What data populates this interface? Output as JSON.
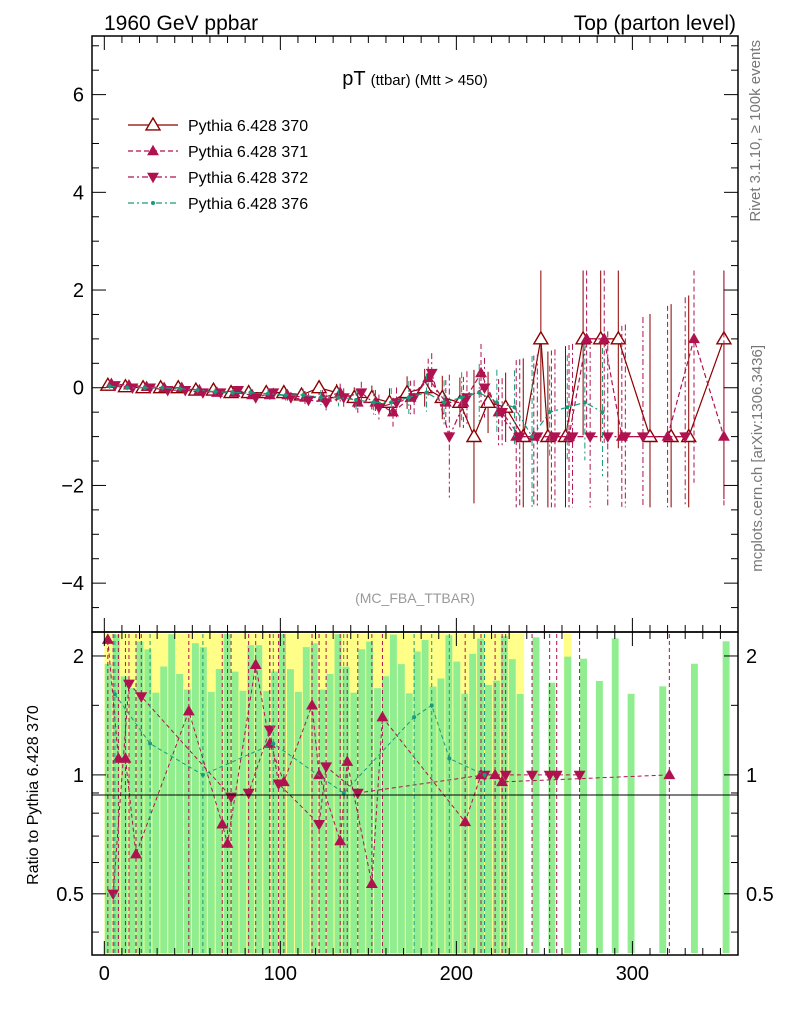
{
  "header": {
    "left": "1960 GeV ppbar",
    "right": "Top (parton level)"
  },
  "side": {
    "rivet": "Rivet 3.1.10, ≥ 100k events",
    "mcplots": "mcplots.cern.ch [arXiv:1306.3436]"
  },
  "chart_data": [
    {
      "type": "line",
      "title": "pT (ttbar) (Mtt > 450)",
      "title_main": "pT",
      "title_sub": "(ttbar) (Mtt > 450)",
      "analysis_label": "(MC_FBA_TTBAR)",
      "xlim": [
        -7,
        360
      ],
      "ylim": [
        -5,
        7.2
      ],
      "y_ticks": [
        -4,
        -2,
        0,
        2,
        4,
        6
      ],
      "y_tick_labels": [
        "−4",
        "−2",
        "0",
        "2",
        "4",
        "6"
      ],
      "x_ticks": [
        0,
        100,
        200,
        300
      ],
      "x_tick_labels": [
        "0",
        "100",
        "200",
        "300"
      ],
      "legend_position": "top-left",
      "series": [
        {
          "name": "Pythia 6.428 370",
          "color": "#8b0000",
          "marker": "open-triangle-up",
          "line": "solid",
          "x": [
            2,
            12,
            22,
            32,
            42,
            52,
            62,
            72,
            82,
            92,
            102,
            112,
            122,
            132,
            142,
            152,
            162,
            172,
            182,
            192,
            202,
            210,
            218,
            228,
            238,
            248,
            252,
            262,
            272,
            282,
            292,
            310,
            322,
            332,
            352
          ],
          "y": [
            0.05,
            0.02,
            0.0,
            0.0,
            0.0,
            -0.05,
            -0.05,
            -0.1,
            -0.1,
            -0.1,
            -0.1,
            -0.15,
            0.0,
            -0.1,
            -0.2,
            -0.2,
            -0.3,
            -0.1,
            0.0,
            -0.2,
            -0.3,
            -1.0,
            -0.3,
            -0.4,
            -1.0,
            1.0,
            -1.0,
            -1.0,
            1.0,
            1.0,
            1.0,
            -1.0,
            -1.0,
            -1.0,
            1.0
          ]
        },
        {
          "name": "Pythia 6.428 371",
          "color": "#b0124f",
          "marker": "filled-triangle-up",
          "line": "dashed",
          "x": [
            4,
            14,
            24,
            34,
            44,
            54,
            64,
            74,
            84,
            94,
            104,
            114,
            124,
            134,
            144,
            154,
            164,
            174,
            184,
            194,
            204,
            214,
            224,
            234,
            244,
            254,
            264,
            274,
            284,
            294,
            320,
            335,
            352
          ],
          "y": [
            0.08,
            0.05,
            0.02,
            0.0,
            0.0,
            -0.05,
            -0.1,
            -0.1,
            -0.15,
            -0.15,
            -0.15,
            -0.2,
            -0.2,
            -0.1,
            -0.3,
            -0.3,
            -0.5,
            -0.2,
            0.2,
            -0.3,
            -0.3,
            0.3,
            -0.5,
            -1.0,
            -1.0,
            -1.0,
            -1.0,
            1.0,
            1.0,
            -1.0,
            -1.0,
            1.0,
            -1.0
          ]
        },
        {
          "name": "Pythia 6.428 372",
          "color": "#b0124f",
          "marker": "filled-triangle-down",
          "line": "dash-dot",
          "x": [
            6,
            16,
            26,
            36,
            46,
            56,
            66,
            76,
            86,
            96,
            106,
            116,
            126,
            136,
            146,
            156,
            166,
            176,
            186,
            196,
            206,
            216,
            226,
            236,
            246,
            256,
            266,
            276,
            286,
            296,
            306,
            330
          ],
          "y": [
            0.05,
            0.0,
            0.0,
            -0.05,
            -0.05,
            -0.1,
            -0.1,
            -0.05,
            -0.2,
            -0.1,
            -0.2,
            -0.25,
            -0.3,
            -0.2,
            -0.1,
            -0.4,
            -0.3,
            -0.2,
            0.3,
            -1.0,
            -0.2,
            0.0,
            -0.5,
            -1.0,
            -1.0,
            -1.0,
            -1.0,
            -1.0,
            -1.0,
            -1.0,
            -1.0,
            -1.0
          ]
        },
        {
          "name": "Pythia 6.428 376",
          "color": "#1a9a7a",
          "marker": "small-dot",
          "line": "dash-dot",
          "x": [
            3,
            13,
            23,
            33,
            43,
            53,
            63,
            73,
            83,
            93,
            103,
            113,
            123,
            133,
            143,
            153,
            163,
            173,
            183,
            193,
            203,
            213,
            223,
            233,
            243,
            253,
            263,
            273,
            283
          ],
          "y": [
            0.03,
            0.0,
            0.0,
            0.0,
            -0.02,
            -0.05,
            -0.08,
            -0.1,
            -0.1,
            -0.12,
            -0.15,
            -0.15,
            -0.2,
            -0.2,
            -0.25,
            -0.3,
            -0.3,
            -0.2,
            -0.1,
            -0.3,
            -0.2,
            -0.1,
            -0.3,
            -0.4,
            -1.0,
            -0.5,
            -0.4,
            -0.3,
            -0.5
          ]
        }
      ]
    },
    {
      "type": "line",
      "ylabel": "Ratio to Pythia 6.428 370",
      "xlim": [
        -7,
        360
      ],
      "ylim": [
        0.35,
        2.3
      ],
      "y_ticks": [
        0.5,
        1,
        2
      ],
      "y_tick_labels": [
        "0.5",
        "1",
        "2"
      ],
      "x_ticks": [
        0,
        100,
        200,
        300
      ],
      "x_tick_labels": [
        "0",
        "100",
        "200",
        "300"
      ],
      "reference_line": 1,
      "series": [
        {
          "name": "Pythia 6.428 371",
          "color": "#b0124f",
          "marker": "filled-triangle-up",
          "x": [
            2,
            8,
            12,
            18,
            48,
            67,
            70,
            86,
            94,
            102,
            118,
            122,
            134,
            138,
            152,
            158,
            205,
            214,
            222,
            226,
            321
          ],
          "y": [
            2.2,
            1.1,
            1.1,
            0.63,
            1.45,
            0.75,
            0.67,
            1.9,
            1.2,
            0.96,
            1.5,
            1.0,
            0.68,
            1.08,
            0.53,
            1.4,
            0.76,
            1.0,
            1.0,
            0.96,
            1.0
          ]
        },
        {
          "name": "Pythia 6.428 372",
          "color": "#b0124f",
          "marker": "filled-triangle-down",
          "x": [
            5,
            14,
            21,
            72,
            82,
            94,
            99,
            122,
            126,
            144,
            216,
            228,
            243,
            253,
            257,
            270
          ],
          "y": [
            0.5,
            1.7,
            1.58,
            0.88,
            0.9,
            1.3,
            0.95,
            0.75,
            1.05,
            0.9,
            1.0,
            1.0,
            1.0,
            1.0,
            1.0,
            1.0
          ]
        },
        {
          "name": "Pythia 6.428 376",
          "color": "#1a9a7a",
          "marker": "small-dot",
          "x": [
            6,
            26,
            56,
            96,
            136,
            176,
            186,
            196,
            216
          ],
          "y": [
            1.6,
            1.2,
            1.0,
            1.2,
            0.9,
            1.4,
            1.5,
            1.1,
            1.0
          ]
        }
      ]
    }
  ]
}
